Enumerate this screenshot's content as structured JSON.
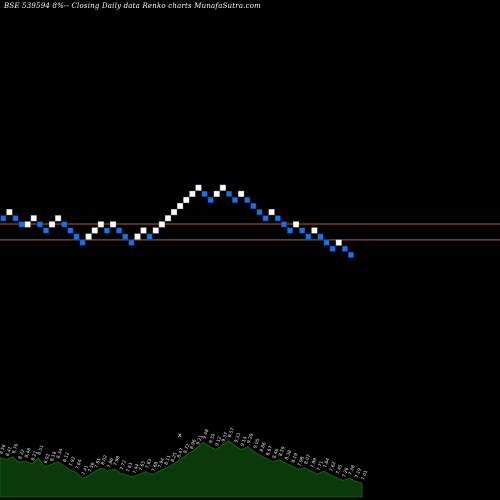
{
  "header": {
    "symbol_label": "BSE 539594",
    "description": "8%-- Closing Daily data Renko charts MunafaSutra.com"
  },
  "colors": {
    "background": "#000000",
    "up_brick": "#ffffff",
    "down_brick": "#1e6fe0",
    "brick_border": "#0a2a6a",
    "support_line": "#b06030",
    "volume_fill": "#0a3a0a",
    "volume_line": "#1a6a1a",
    "label_color": "#e8e8e8"
  },
  "chart_data": {
    "type": "renko",
    "title": "BSE 539594 8%-- Closing Daily data Renko charts",
    "bricks": [
      {
        "i": 0,
        "level": 9,
        "dir": "down"
      },
      {
        "i": 1,
        "level": 10,
        "dir": "up"
      },
      {
        "i": 2,
        "level": 9,
        "dir": "down"
      },
      {
        "i": 3,
        "level": 8,
        "dir": "down"
      },
      {
        "i": 4,
        "level": 8,
        "dir": "up"
      },
      {
        "i": 5,
        "level": 9,
        "dir": "up"
      },
      {
        "i": 6,
        "level": 8,
        "dir": "down"
      },
      {
        "i": 7,
        "level": 7,
        "dir": "down"
      },
      {
        "i": 8,
        "level": 8,
        "dir": "up"
      },
      {
        "i": 9,
        "level": 9,
        "dir": "up"
      },
      {
        "i": 10,
        "level": 8,
        "dir": "down"
      },
      {
        "i": 11,
        "level": 7,
        "dir": "down"
      },
      {
        "i": 12,
        "level": 6,
        "dir": "down"
      },
      {
        "i": 13,
        "level": 5,
        "dir": "down"
      },
      {
        "i": 14,
        "level": 6,
        "dir": "up"
      },
      {
        "i": 15,
        "level": 7,
        "dir": "up"
      },
      {
        "i": 16,
        "level": 8,
        "dir": "up"
      },
      {
        "i": 17,
        "level": 7,
        "dir": "down"
      },
      {
        "i": 18,
        "level": 8,
        "dir": "up"
      },
      {
        "i": 19,
        "level": 7,
        "dir": "down"
      },
      {
        "i": 20,
        "level": 6,
        "dir": "down"
      },
      {
        "i": 21,
        "level": 5,
        "dir": "down"
      },
      {
        "i": 22,
        "level": 6,
        "dir": "up"
      },
      {
        "i": 23,
        "level": 7,
        "dir": "up"
      },
      {
        "i": 24,
        "level": 6,
        "dir": "down"
      },
      {
        "i": 25,
        "level": 7,
        "dir": "up"
      },
      {
        "i": 26,
        "level": 8,
        "dir": "up"
      },
      {
        "i": 27,
        "level": 9,
        "dir": "up"
      },
      {
        "i": 28,
        "level": 10,
        "dir": "up"
      },
      {
        "i": 29,
        "level": 11,
        "dir": "up"
      },
      {
        "i": 30,
        "level": 12,
        "dir": "up"
      },
      {
        "i": 31,
        "level": 13,
        "dir": "up"
      },
      {
        "i": 32,
        "level": 14,
        "dir": "up"
      },
      {
        "i": 33,
        "level": 13,
        "dir": "down"
      },
      {
        "i": 34,
        "level": 12,
        "dir": "down"
      },
      {
        "i": 35,
        "level": 13,
        "dir": "up"
      },
      {
        "i": 36,
        "level": 14,
        "dir": "up"
      },
      {
        "i": 37,
        "level": 13,
        "dir": "down"
      },
      {
        "i": 38,
        "level": 12,
        "dir": "down"
      },
      {
        "i": 39,
        "level": 13,
        "dir": "up"
      },
      {
        "i": 40,
        "level": 12,
        "dir": "down"
      },
      {
        "i": 41,
        "level": 11,
        "dir": "down"
      },
      {
        "i": 42,
        "level": 10,
        "dir": "down"
      },
      {
        "i": 43,
        "level": 9,
        "dir": "down"
      },
      {
        "i": 44,
        "level": 10,
        "dir": "up"
      },
      {
        "i": 45,
        "level": 9,
        "dir": "down"
      },
      {
        "i": 46,
        "level": 8,
        "dir": "down"
      },
      {
        "i": 47,
        "level": 7,
        "dir": "down"
      },
      {
        "i": 48,
        "level": 8,
        "dir": "up"
      },
      {
        "i": 49,
        "level": 7,
        "dir": "down"
      },
      {
        "i": 50,
        "level": 6,
        "dir": "down"
      },
      {
        "i": 51,
        "level": 7,
        "dir": "up"
      },
      {
        "i": 52,
        "level": 6,
        "dir": "down"
      },
      {
        "i": 53,
        "level": 5,
        "dir": "down"
      },
      {
        "i": 54,
        "level": 4,
        "dir": "down"
      },
      {
        "i": 55,
        "level": 5,
        "dir": "up"
      },
      {
        "i": 56,
        "level": 4,
        "dir": "down"
      },
      {
        "i": 57,
        "level": 3,
        "dir": "down"
      }
    ],
    "reference_lines": [
      {
        "level": 8.6
      },
      {
        "level": 6.0
      }
    ],
    "volume": [
      {
        "value": 5.5,
        "label": "8.56"
      },
      {
        "value": 5.2,
        "label": "8.41"
      },
      {
        "value": 5.6,
        "label": "8.76"
      },
      {
        "value": 4.8,
        "label": "8.32"
      },
      {
        "value": 5.0,
        "label": "8.48"
      },
      {
        "value": 4.6,
        "label": "8.21"
      },
      {
        "value": 5.4,
        "label": "8.51"
      },
      {
        "value": 4.2,
        "label": "8.02"
      },
      {
        "value": 4.5,
        "label": "8.19"
      },
      {
        "value": 4.9,
        "label": "8.34"
      },
      {
        "value": 4.4,
        "label": "8.12"
      },
      {
        "value": 3.8,
        "label": "7.92"
      },
      {
        "value": 3.4,
        "label": "7.64"
      },
      {
        "value": 2.6,
        "label": "7.41"
      },
      {
        "value": 3.0,
        "label": "7.56"
      },
      {
        "value": 3.6,
        "label": "7.81"
      },
      {
        "value": 4.0,
        "label": "8.02"
      },
      {
        "value": 3.6,
        "label": "7.86"
      },
      {
        "value": 3.9,
        "label": "7.98"
      },
      {
        "value": 3.3,
        "label": "7.72"
      },
      {
        "value": 3.0,
        "label": "7.61"
      },
      {
        "value": 2.8,
        "label": "7.44"
      },
      {
        "value": 3.2,
        "label": "7.65"
      },
      {
        "value": 3.5,
        "label": "7.83"
      },
      {
        "value": 3.1,
        "label": "7.68"
      },
      {
        "value": 3.6,
        "label": "7.94"
      },
      {
        "value": 4.0,
        "label": "8.11"
      },
      {
        "value": 4.4,
        "label": "8.25"
      },
      {
        "value": 5.0,
        "label": "8.47"
      },
      {
        "value": 5.6,
        "label": "8.72"
      },
      {
        "value": 6.2,
        "label": "8.96"
      },
      {
        "value": 6.8,
        "label": "9.21"
      },
      {
        "value": 7.6,
        "label": "9.48"
      },
      {
        "value": 7.0,
        "label": "9.30"
      },
      {
        "value": 6.6,
        "label": "9.12"
      },
      {
        "value": 7.2,
        "label": "9.37"
      },
      {
        "value": 7.8,
        "label": "9.57"
      },
      {
        "value": 7.1,
        "label": "9.33"
      },
      {
        "value": 6.6,
        "label": "9.14"
      },
      {
        "value": 7.0,
        "label": "9.28"
      },
      {
        "value": 6.3,
        "label": "9.05"
      },
      {
        "value": 5.8,
        "label": "8.86"
      },
      {
        "value": 5.3,
        "label": "8.67"
      },
      {
        "value": 4.9,
        "label": "8.46"
      },
      {
        "value": 5.2,
        "label": "8.59"
      },
      {
        "value": 4.7,
        "label": "8.38"
      },
      {
        "value": 4.3,
        "label": "8.19"
      },
      {
        "value": 3.8,
        "label": "7.98"
      },
      {
        "value": 4.1,
        "label": "8.07"
      },
      {
        "value": 3.6,
        "label": "7.89"
      },
      {
        "value": 3.2,
        "label": "7.71"
      },
      {
        "value": 3.6,
        "label": "7.84"
      },
      {
        "value": 3.1,
        "label": "7.62"
      },
      {
        "value": 2.7,
        "label": "7.45"
      },
      {
        "value": 2.3,
        "label": "7.26"
      },
      {
        "value": 2.6,
        "label": "7.38"
      },
      {
        "value": 2.2,
        "label": "7.19"
      },
      {
        "value": 1.9,
        "label": "7.01"
      }
    ],
    "marker_text": "x",
    "grid": false,
    "legend": "none"
  }
}
